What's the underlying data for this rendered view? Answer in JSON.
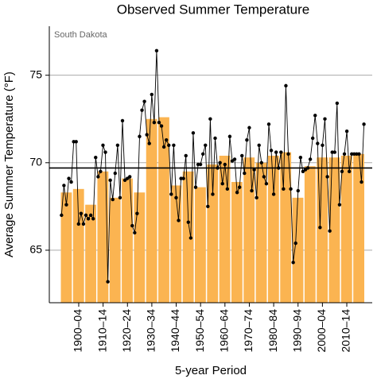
{
  "chart_data": {
    "type": "combo",
    "title": "Observed Summer Temperature",
    "annotation": "South Dakota",
    "x_label": "5-year Period",
    "y_label": "Average Summer Temperature (°F)",
    "categories": [
      null,
      "1900–04",
      null,
      "1910–14",
      null,
      "1920–24",
      null,
      "1930–34",
      null,
      "1940–44",
      null,
      "1950–54",
      null,
      "1960–64",
      null,
      "1970–74",
      null,
      "1980–84",
      null,
      "1990–94",
      null,
      "2000–04",
      null,
      "2010–14",
      null
    ],
    "values": [
      68.3,
      68.5,
      67.6,
      69.5,
      68.0,
      69.1,
      68.3,
      72.5,
      72.6,
      68.7,
      69.5,
      68.6,
      69.9,
      70.4,
      68.9,
      70.3,
      70.0,
      70.4,
      70.6,
      68.0,
      69.8,
      70.3,
      70.3,
      70.4,
      70.5
    ],
    "color": "#fbb451",
    "line": {
      "color": "#000000",
      "x": [
        1895,
        1896,
        1897,
        1898,
        1899,
        1900,
        1901,
        1902,
        1903,
        1904,
        1905,
        1906,
        1907,
        1908,
        1909,
        1910,
        1911,
        1912,
        1913,
        1914,
        1915,
        1916,
        1917,
        1918,
        1919,
        1920,
        1921,
        1922,
        1923,
        1924,
        1925,
        1926,
        1927,
        1928,
        1929,
        1930,
        1931,
        1932,
        1933,
        1934,
        1935,
        1936,
        1937,
        1938,
        1939,
        1940,
        1941,
        1942,
        1943,
        1944,
        1945,
        1946,
        1947,
        1948,
        1949,
        1950,
        1951,
        1952,
        1953,
        1954,
        1955,
        1956,
        1957,
        1958,
        1959,
        1960,
        1961,
        1962,
        1963,
        1964,
        1965,
        1966,
        1967,
        1968,
        1969,
        1970,
        1971,
        1972,
        1973,
        1974,
        1975,
        1976,
        1977,
        1978,
        1979,
        1980,
        1981,
        1982,
        1983,
        1984,
        1985,
        1986,
        1987,
        1988,
        1989,
        1990,
        1991,
        1992,
        1993,
        1994,
        1995,
        1996,
        1997,
        1998,
        1999,
        2000,
        2001,
        2002,
        2003,
        2004,
        2005,
        2006,
        2007,
        2008,
        2009,
        2010,
        2011,
        2012,
        2013,
        2014,
        2015,
        2016,
        2017,
        2018,
        2019
      ],
      "values": [
        67.0,
        68.7,
        67.6,
        69.1,
        68.9,
        71.2,
        71.2,
        66.5,
        67.1,
        66.5,
        67.0,
        66.8,
        67.0,
        66.8,
        70.3,
        69.2,
        69.5,
        71.0,
        70.6,
        63.2,
        69.0,
        67.9,
        69.4,
        71.0,
        68.0,
        72.4,
        69.0,
        69.1,
        69.2,
        66.4,
        66.0,
        67.1,
        71.5,
        73.0,
        73.5,
        71.6,
        71.1,
        73.9,
        72.3,
        76.4,
        72.3,
        72.1,
        70.9,
        71.3,
        71.0,
        68.2,
        71.0,
        68.0,
        66.7,
        69.1,
        69.1,
        70.4,
        66.6,
        65.7,
        71.7,
        68.6,
        69.9,
        69.9,
        70.5,
        71.0,
        67.5,
        72.5,
        68.2,
        71.4,
        69.7,
        70.0,
        68.8,
        69.9,
        68.5,
        71.5,
        70.1,
        70.2,
        68.3,
        68.6,
        70.4,
        69.4,
        71.3,
        72.0,
        68.4,
        69.6,
        68.0,
        71.0,
        70.0,
        69.2,
        68.8,
        72.2,
        70.7,
        68.2,
        70.6,
        69.7,
        70.6,
        68.5,
        74.4,
        70.5,
        68.5,
        64.3,
        65.4,
        68.4,
        70.3,
        69.5,
        69.6,
        69.7,
        70.2,
        71.4,
        72.7,
        71.1,
        66.3,
        71.0,
        72.5,
        69.2,
        66.1,
        70.6,
        70.6,
        73.4,
        67.6,
        69.5,
        70.5,
        71.8,
        69.5,
        70.5,
        70.5,
        70.5,
        70.5,
        68.9,
        72.2
      ]
    },
    "hline": 69.7,
    "xlim": [
      1890,
      2022.4
    ],
    "ylim": [
      62,
      77.8
    ],
    "yticks": [
      65,
      70,
      75
    ],
    "grid": true
  }
}
